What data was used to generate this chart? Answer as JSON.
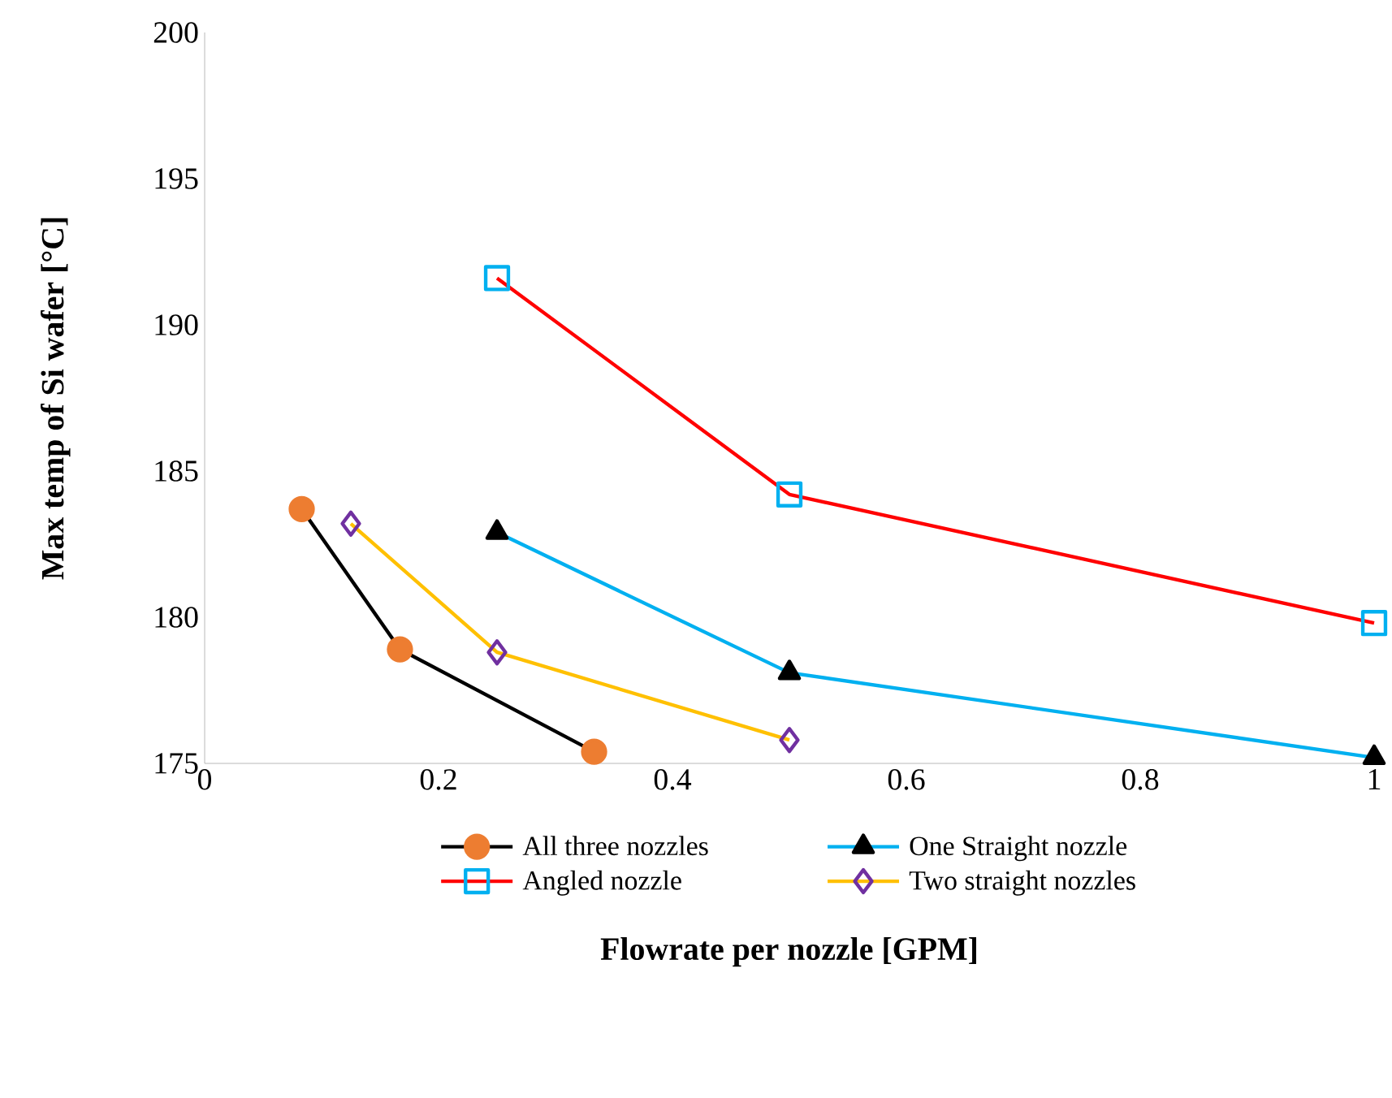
{
  "chart_data": {
    "type": "line",
    "xlabel": "Flowrate per nozzle [GPM]",
    "ylabel": "Max temp of Si wafer [°C]",
    "xlim": [
      0,
      1
    ],
    "xticks": [
      0,
      0.2,
      0.4,
      0.6,
      0.8,
      1
    ],
    "ylim": [
      175,
      200
    ],
    "yticks": [
      175,
      180,
      185,
      190,
      195,
      200
    ],
    "grid": false,
    "legend": "bottom",
    "line_style": "solid",
    "series": [
      {
        "name": "All three nozzles",
        "color": "#000000",
        "colors": [
          "#ed7d31",
          "#ed7d31",
          "#ed7d31"
        ],
        "marker": "circle",
        "x": [
          0.083,
          0.167,
          0.333
        ],
        "values": [
          183.7,
          178.9,
          175.4
        ]
      },
      {
        "name": "One Straight nozzle",
        "color": "#00b0f0",
        "colors": [
          "#000000",
          "#000000",
          "#000000"
        ],
        "marker": "triangle",
        "x": [
          0.25,
          0.5,
          1
        ],
        "values": [
          182.9,
          178.1,
          175.2
        ]
      },
      {
        "name": "Angled nozzle",
        "color": "#ff0000",
        "colors": [
          "#00b0f0",
          "#00b0f0",
          "#00b0f0"
        ],
        "marker": "square",
        "x": [
          0.25,
          0.5,
          1
        ],
        "values": [
          191.6,
          184.2,
          179.8
        ]
      },
      {
        "name": "Two straight nozzles",
        "color": "#ffc000",
        "colors": [
          "#7030a0",
          "#7030a0",
          "#7030a0"
        ],
        "marker": "diamond",
        "x": [
          0.125,
          0.25,
          0.5
        ],
        "values": [
          183.2,
          178.8,
          175.8
        ]
      }
    ]
  }
}
